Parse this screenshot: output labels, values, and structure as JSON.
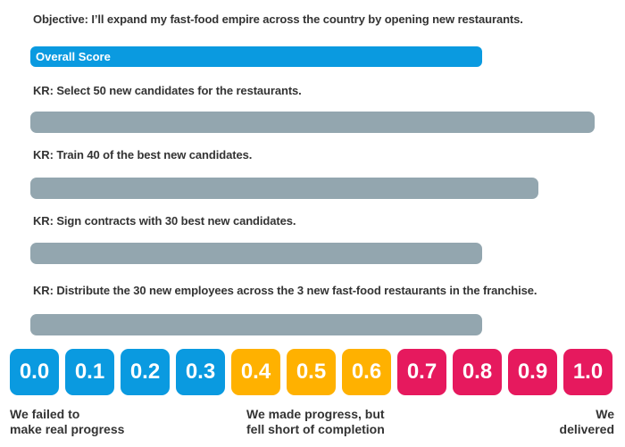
{
  "objective": "Objective: I’ll expand my fast-food empire across the country by opening new restaurants.",
  "overall_score": {
    "label": "Overall Score",
    "progress": 0.8
  },
  "key_results": [
    {
      "label": "KR: Select 50 new candidates for the restaurants.",
      "progress": 1.0
    },
    {
      "label": "KR: Train 40 of the best new candidates.",
      "progress": 0.9
    },
    {
      "label": "KR: Sign contracts with 30 best new candidates.",
      "progress": 0.8
    },
    {
      "label": "KR: Distribute the 30 new employees across the 3 new fast-food restaurants in the franchise.",
      "progress": 0.8
    }
  ],
  "colors": {
    "score_bar": "#0a9ae0",
    "kr_bar": "#93a6af",
    "scale_low": "#0a9ae0",
    "scale_mid": "#ffb100",
    "scale_high": "#e6195e"
  },
  "scale": {
    "tiles": [
      {
        "label": "0.0",
        "color": "#0a9ae0"
      },
      {
        "label": "0.1",
        "color": "#0a9ae0"
      },
      {
        "label": "0.2",
        "color": "#0a9ae0"
      },
      {
        "label": "0.3",
        "color": "#0a9ae0"
      },
      {
        "label": "0.4",
        "color": "#ffb100"
      },
      {
        "label": "0.5",
        "color": "#ffb100"
      },
      {
        "label": "0.6",
        "color": "#ffb100"
      },
      {
        "label": "0.7",
        "color": "#e6195e"
      },
      {
        "label": "0.8",
        "color": "#e6195e"
      },
      {
        "label": "0.9",
        "color": "#e6195e"
      },
      {
        "label": "1.0",
        "color": "#e6195e"
      }
    ],
    "captions": {
      "low": "We failed to\nmake real progress",
      "mid": "We made progress, but\nfell short of completion",
      "high": "We\ndelivered"
    }
  }
}
